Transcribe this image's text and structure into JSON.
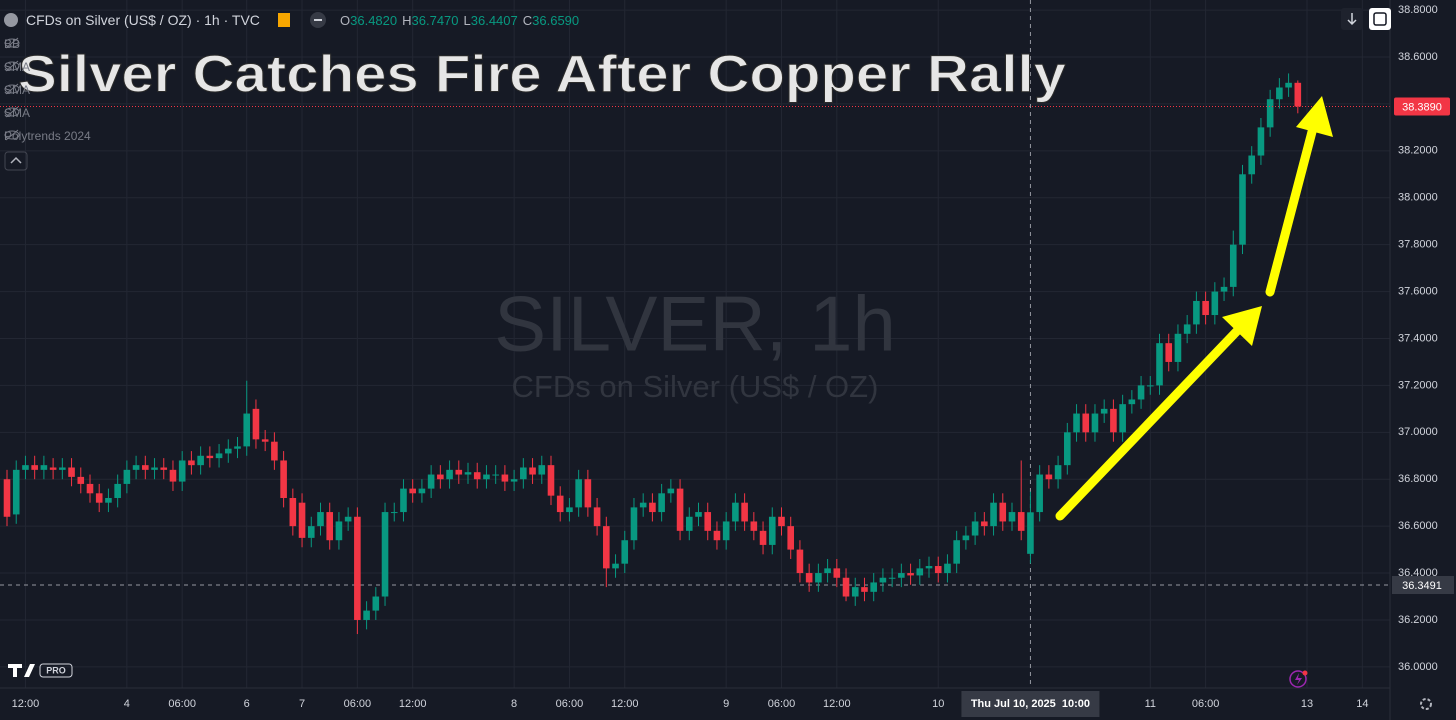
{
  "toolbar": {
    "symbol": "CFDs on Silver (US$ / OZ) · 1h · TVC",
    "ohlc_legend": [
      {
        "key": "O",
        "value": "36.4820"
      },
      {
        "key": "H",
        "value": "36.7470"
      },
      {
        "key": "L",
        "value": "36.4407"
      },
      {
        "key": "C",
        "value": "36.6590"
      }
    ],
    "indicators": [
      "BB",
      "SMA",
      "SMA",
      "SMA",
      "Polytrends 2024"
    ],
    "logo_badge": "PRO"
  },
  "chart_data": {
    "type": "candlestick",
    "title": "Silver Catches Fire After Copper Rally",
    "watermark": "SILVER, 1h",
    "watermark_subtitle": "CFDs on Silver (US$ / OZ)",
    "up_color": "#089981",
    "down_color": "#f23645",
    "grid": true,
    "categories": [
      null,
      null,
      "12:00",
      null,
      null,
      null,
      null,
      null,
      null,
      null,
      null,
      null,
      null,
      "4",
      null,
      null,
      null,
      null,
      null,
      "06:00",
      null,
      null,
      null,
      null,
      null,
      null,
      "6",
      null,
      null,
      null,
      null,
      null,
      "7",
      null,
      null,
      null,
      null,
      null,
      "06:00",
      null,
      null,
      null,
      null,
      null,
      "12:00",
      null,
      null,
      null,
      null,
      null,
      null,
      null,
      null,
      null,
      null,
      "8",
      null,
      null,
      null,
      null,
      null,
      "06:00",
      null,
      null,
      null,
      null,
      null,
      "12:00",
      null,
      null,
      null,
      null,
      null,
      null,
      null,
      null,
      null,
      null,
      "9",
      null,
      null,
      null,
      null,
      null,
      "06:00",
      null,
      null,
      null,
      null,
      null,
      "12:00",
      null,
      null,
      null,
      null,
      null,
      null,
      null,
      null,
      null,
      null,
      "10",
      null,
      null,
      null,
      null,
      null,
      null,
      null,
      null,
      null,
      "Thu Jul 10, 2025  10:00",
      null,
      null,
      null,
      null,
      null,
      null,
      null,
      null,
      null,
      null,
      null,
      null,
      "11",
      null,
      null,
      null,
      null,
      null,
      "06:00",
      null,
      null,
      null,
      null,
      null,
      null,
      null,
      null,
      null,
      null,
      "13",
      null,
      null,
      null,
      null,
      null,
      "14"
    ],
    "open": [
      36.8,
      36.65,
      36.84,
      36.86,
      36.84,
      36.85,
      36.84,
      36.85,
      36.81,
      36.78,
      36.74,
      36.7,
      36.72,
      36.78,
      36.84,
      36.86,
      36.84,
      36.85,
      36.84,
      36.79,
      36.88,
      36.86,
      36.9,
      36.89,
      36.91,
      36.93,
      36.94,
      37.1,
      36.97,
      36.96,
      36.88,
      36.72,
      36.7,
      36.55,
      36.6,
      36.66,
      36.54,
      36.62,
      36.64,
      36.2,
      36.24,
      36.3,
      36.66,
      36.66,
      36.76,
      36.74,
      36.76,
      36.82,
      36.8,
      36.84,
      36.82,
      36.83,
      36.8,
      36.82,
      36.82,
      36.79,
      36.8,
      36.85,
      36.82,
      36.86,
      36.73,
      36.66,
      36.68,
      36.8,
      36.68,
      36.6,
      36.42,
      36.44,
      36.54,
      36.68,
      36.7,
      36.66,
      36.74,
      36.76,
      36.58,
      36.64,
      36.66,
      36.58,
      36.54,
      36.62,
      36.7,
      36.62,
      36.58,
      36.52,
      36.64,
      36.6,
      36.5,
      36.4,
      36.36,
      36.4,
      36.42,
      36.38,
      36.3,
      36.34,
      36.32,
      36.36,
      36.38,
      36.38,
      36.4,
      36.39,
      36.42,
      36.43,
      36.4,
      36.44,
      36.54,
      36.56,
      36.62,
      36.6,
      36.7,
      36.62,
      36.66,
      36.482,
      36.66,
      36.82,
      36.8,
      36.86,
      37.0,
      37.08,
      37.0,
      37.08,
      37.1,
      37.0,
      37.12,
      37.14,
      37.2,
      37.2,
      37.38,
      37.3,
      37.42,
      37.46,
      37.56,
      37.5,
      37.6,
      37.62,
      37.8,
      38.1,
      38.18,
      38.3,
      38.42,
      38.47,
      38.49,
      null,
      null,
      null,
      null,
      null,
      null,
      null
    ],
    "high": [
      36.84,
      36.88,
      36.9,
      36.9,
      36.9,
      36.89,
      36.89,
      36.89,
      36.85,
      36.82,
      36.78,
      36.76,
      36.82,
      36.88,
      36.9,
      36.9,
      36.89,
      36.89,
      36.88,
      36.92,
      36.92,
      36.94,
      36.94,
      36.95,
      36.97,
      36.98,
      37.22,
      37.14,
      37.01,
      37.0,
      36.92,
      36.76,
      36.74,
      36.64,
      36.7,
      36.7,
      36.66,
      36.68,
      36.68,
      36.28,
      36.34,
      36.7,
      36.7,
      36.8,
      36.8,
      36.8,
      36.86,
      36.86,
      36.88,
      36.88,
      36.87,
      36.87,
      36.86,
      36.86,
      36.86,
      36.84,
      36.89,
      36.89,
      36.9,
      36.9,
      36.77,
      36.72,
      36.84,
      36.84,
      36.72,
      36.64,
      36.48,
      36.58,
      36.72,
      36.74,
      36.74,
      36.78,
      36.8,
      36.8,
      36.68,
      36.7,
      36.7,
      36.62,
      36.66,
      36.74,
      36.74,
      36.66,
      36.62,
      36.68,
      36.68,
      36.64,
      36.54,
      36.44,
      36.44,
      36.46,
      36.46,
      36.42,
      36.38,
      36.38,
      36.4,
      36.42,
      36.42,
      36.44,
      36.44,
      36.46,
      36.47,
      36.47,
      36.48,
      36.58,
      36.6,
      36.66,
      36.66,
      36.74,
      36.74,
      36.7,
      36.88,
      36.747,
      36.86,
      36.86,
      36.9,
      37.04,
      37.12,
      37.12,
      37.12,
      37.14,
      37.14,
      37.16,
      37.18,
      37.24,
      37.24,
      37.42,
      37.42,
      37.46,
      37.5,
      37.6,
      37.6,
      37.64,
      37.66,
      37.86,
      38.14,
      38.22,
      38.34,
      38.46,
      38.51,
      38.53,
      38.5,
      null,
      null,
      null,
      null,
      null,
      null,
      null
    ],
    "low": [
      36.6,
      36.61,
      36.8,
      36.8,
      36.8,
      36.8,
      36.8,
      36.77,
      36.74,
      36.7,
      36.66,
      36.66,
      36.68,
      36.74,
      36.8,
      36.8,
      36.8,
      36.8,
      36.75,
      36.75,
      36.82,
      36.82,
      36.85,
      36.85,
      36.87,
      36.89,
      36.9,
      36.93,
      36.92,
      36.84,
      36.68,
      36.56,
      36.51,
      36.51,
      36.56,
      36.5,
      36.5,
      36.58,
      36.14,
      36.16,
      36.2,
      36.26,
      36.62,
      36.62,
      36.7,
      36.7,
      36.72,
      36.76,
      36.76,
      36.78,
      36.78,
      36.76,
      36.76,
      36.78,
      36.75,
      36.75,
      36.76,
      36.78,
      36.78,
      36.69,
      36.62,
      36.62,
      36.64,
      36.64,
      36.56,
      36.34,
      36.38,
      36.4,
      36.5,
      36.64,
      36.62,
      36.62,
      36.7,
      36.54,
      36.54,
      36.6,
      36.54,
      36.5,
      36.5,
      36.58,
      36.58,
      36.54,
      36.48,
      36.48,
      36.56,
      36.46,
      36.36,
      36.32,
      36.32,
      36.36,
      36.34,
      36.28,
      36.26,
      36.28,
      36.28,
      36.32,
      36.34,
      36.34,
      36.35,
      36.35,
      36.38,
      36.36,
      36.36,
      36.4,
      36.5,
      36.52,
      36.56,
      36.56,
      36.58,
      36.58,
      36.54,
      36.4407,
      36.62,
      36.76,
      36.76,
      36.82,
      36.96,
      36.96,
      36.96,
      37.04,
      36.96,
      36.96,
      37.08,
      37.1,
      37.16,
      37.16,
      37.26,
      37.26,
      37.38,
      37.42,
      37.46,
      37.46,
      37.56,
      37.58,
      37.76,
      38.06,
      38.14,
      38.26,
      38.38,
      38.43,
      38.36,
      null,
      null,
      null,
      null,
      null,
      null,
      null
    ],
    "close": [
      36.64,
      36.84,
      36.86,
      36.84,
      36.86,
      36.84,
      36.85,
      36.81,
      36.78,
      36.74,
      36.7,
      36.72,
      36.78,
      36.84,
      36.86,
      36.84,
      36.85,
      36.84,
      36.79,
      36.88,
      36.86,
      36.9,
      36.89,
      36.91,
      36.93,
      36.94,
      37.08,
      36.97,
      36.96,
      36.88,
      36.72,
      36.6,
      36.55,
      36.6,
      36.66,
      36.54,
      36.62,
      36.64,
      36.2,
      36.24,
      36.3,
      36.66,
      36.66,
      36.76,
      36.74,
      36.76,
      36.82,
      36.8,
      36.84,
      36.82,
      36.83,
      36.8,
      36.82,
      36.82,
      36.79,
      36.8,
      36.85,
      36.82,
      36.86,
      36.73,
      36.66,
      36.68,
      36.8,
      36.68,
      36.6,
      36.42,
      36.44,
      36.54,
      36.68,
      36.7,
      36.66,
      36.74,
      36.76,
      36.58,
      36.64,
      36.66,
      36.58,
      36.54,
      36.62,
      36.7,
      36.62,
      36.58,
      36.52,
      36.64,
      36.6,
      36.5,
      36.4,
      36.36,
      36.4,
      36.42,
      36.38,
      36.3,
      36.34,
      36.32,
      36.36,
      36.38,
      36.38,
      36.4,
      36.39,
      36.42,
      36.43,
      36.4,
      36.44,
      36.54,
      36.56,
      36.62,
      36.6,
      36.7,
      36.62,
      36.66,
      36.58,
      36.659,
      36.82,
      36.8,
      36.86,
      37.0,
      37.08,
      37.0,
      37.08,
      37.1,
      37.0,
      37.12,
      37.14,
      37.2,
      37.2,
      37.38,
      37.3,
      37.42,
      37.46,
      37.56,
      37.5,
      37.6,
      37.62,
      37.8,
      38.1,
      38.18,
      38.3,
      38.42,
      38.47,
      38.49,
      38.389,
      null,
      null,
      null,
      null,
      null,
      null,
      null
    ],
    "ylim": [
      35.91,
      38.843
    ],
    "yticks": [
      {
        "value": 38.8,
        "label": "38.8000"
      },
      {
        "value": 38.6,
        "label": "38.6000"
      },
      {
        "value": 38.4,
        "label": "38.4000"
      },
      {
        "value": 38.2,
        "label": "38.2000"
      },
      {
        "value": 38.0,
        "label": "38.0000"
      },
      {
        "value": 37.8,
        "label": "37.8000"
      },
      {
        "value": 37.6,
        "label": "37.6000"
      },
      {
        "value": 37.4,
        "label": "37.4000"
      },
      {
        "value": 37.2,
        "label": "37.2000"
      },
      {
        "value": 37.0,
        "label": "37.0000"
      },
      {
        "value": 36.8,
        "label": "36.8000"
      },
      {
        "value": 36.6,
        "label": "36.6000"
      },
      {
        "value": 36.4,
        "label": "36.4000"
      },
      {
        "value": 36.2,
        "label": "36.2000"
      },
      {
        "value": 36.0,
        "label": "36.0000"
      }
    ],
    "last_price": {
      "value": 38.389,
      "label": "38.3890"
    },
    "crosshair": {
      "x": "Thu Jul 10, 2025  10:00",
      "y": 36.3491
    }
  }
}
